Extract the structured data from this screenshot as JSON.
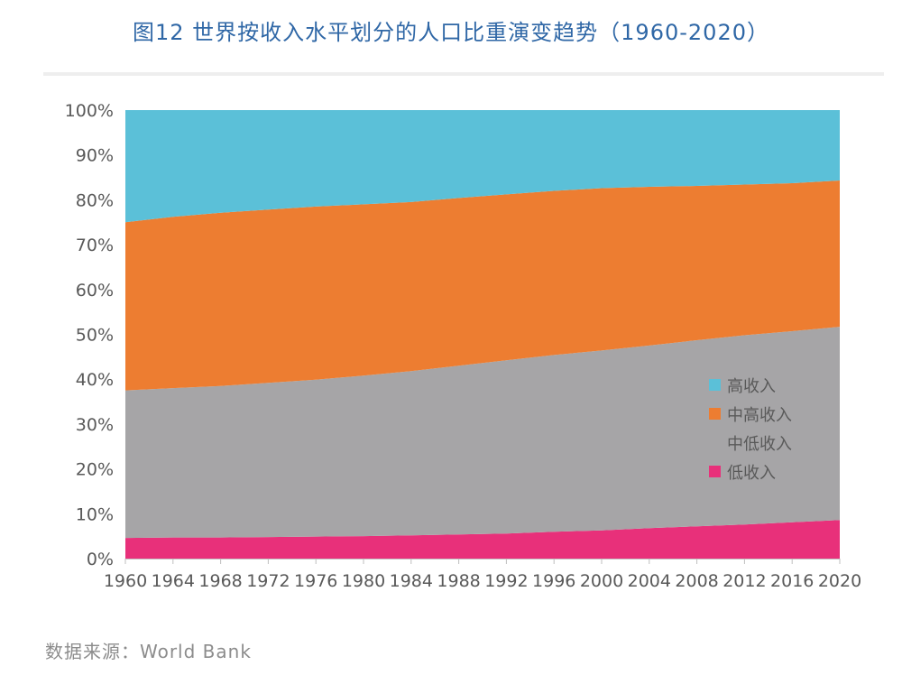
{
  "title": "图12  世界按收入水平划分的人口比重演变趋势（1960-2020）",
  "source": "数据来源：World Bank",
  "chart_data": {
    "type": "area",
    "stacked": true,
    "x": [
      1960,
      1964,
      1968,
      1972,
      1976,
      1980,
      1984,
      1988,
      1992,
      1996,
      2000,
      2004,
      2008,
      2012,
      2016,
      2020
    ],
    "x_tick_labels": [
      "1960",
      "1964",
      "1968",
      "1972",
      "1976",
      "1980",
      "1984",
      "1988",
      "1992",
      "1996",
      "2000",
      "2004",
      "2008",
      "2012",
      "2016",
      "2020"
    ],
    "y_tick_labels": [
      "0%",
      "10%",
      "20%",
      "30%",
      "40%",
      "50%",
      "60%",
      "70%",
      "80%",
      "90%",
      "100%"
    ],
    "ylim": [
      0,
      100
    ],
    "series": [
      {
        "name": "低收入",
        "color": "#e8307a",
        "values": [
          4.6,
          4.7,
          4.7,
          4.8,
          4.9,
          5.0,
          5.2,
          5.4,
          5.6,
          6.0,
          6.3,
          6.8,
          7.2,
          7.6,
          8.1,
          8.6
        ]
      },
      {
        "name": "中低收入",
        "color": "#a6a5a7",
        "values": [
          32.9,
          33.3,
          33.8,
          34.4,
          35.0,
          35.8,
          36.6,
          37.6,
          38.6,
          39.4,
          40.1,
          40.7,
          41.5,
          42.2,
          42.6,
          43.1
        ]
      },
      {
        "name": "中高收入",
        "color": "#ed7d31",
        "values": [
          37.5,
          38.2,
          38.6,
          38.6,
          38.6,
          38.2,
          37.7,
          37.4,
          37.0,
          36.6,
          36.2,
          35.4,
          34.4,
          33.6,
          33.0,
          32.6
        ]
      },
      {
        "name": "高收入",
        "color": "#5bc0d8",
        "values": [
          25.0,
          23.8,
          22.9,
          22.2,
          21.5,
          21.0,
          20.5,
          19.6,
          18.8,
          18.0,
          17.4,
          17.1,
          16.9,
          16.6,
          16.3,
          15.7
        ]
      }
    ],
    "legend_order": [
      "高收入",
      "中高收入",
      "中低收入",
      "低收入"
    ],
    "legend_position": "right-center",
    "grid": false
  }
}
